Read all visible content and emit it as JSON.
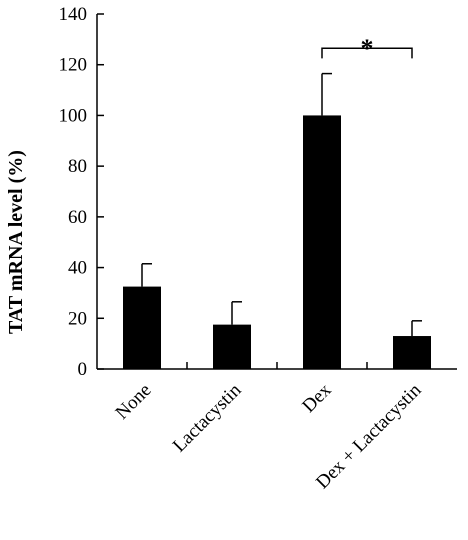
{
  "chart_data": {
    "type": "bar",
    "categories": [
      "None",
      "Lactacystin",
      "Dex",
      "Dex + Lactacystin"
    ],
    "values": [
      32.5,
      17.5,
      100,
      13
    ],
    "errors": [
      9,
      9,
      16.5,
      6
    ],
    "ylabel": "TAT mRNA level (%)",
    "ylim": [
      0,
      140
    ],
    "yticks": [
      0,
      20,
      40,
      60,
      80,
      100,
      120,
      140
    ],
    "bar_color": "#000000",
    "significance": {
      "from": "Dex",
      "to": "Dex + Lactacystin",
      "label": "*"
    }
  }
}
